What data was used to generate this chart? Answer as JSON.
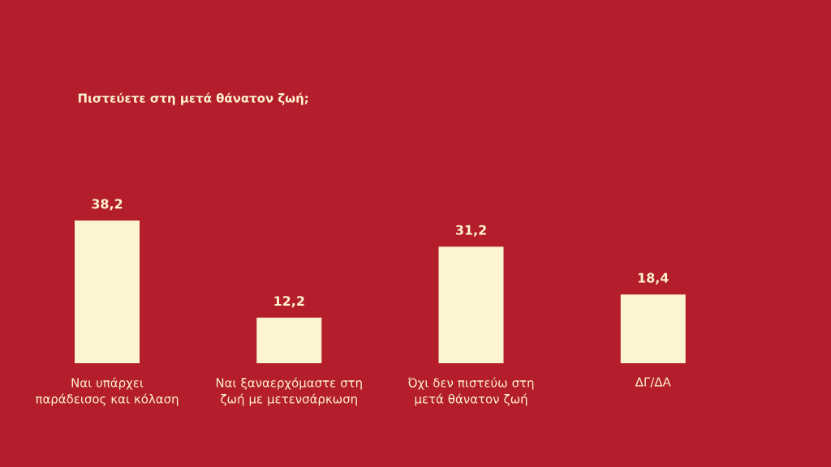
{
  "chart_data": {
    "type": "bar",
    "title": "Πιστεύετε στη μετά θάνατον ζωή;",
    "categories": [
      "Ναι υπάρχει παράδεισος και κόλαση",
      "Ναι ξαναερχόμαστε στη ζωή με μετενσάρκωση",
      "Όχι δεν πιστεύω στη μετά θάνατον ζωή",
      "ΔΓ/ΔΑ"
    ],
    "values": [
      38.2,
      12.2,
      31.2,
      18.4
    ],
    "value_labels": [
      "38,2",
      "12,2",
      "31,2",
      "18,4"
    ],
    "color": "#fdf5cf"
  }
}
